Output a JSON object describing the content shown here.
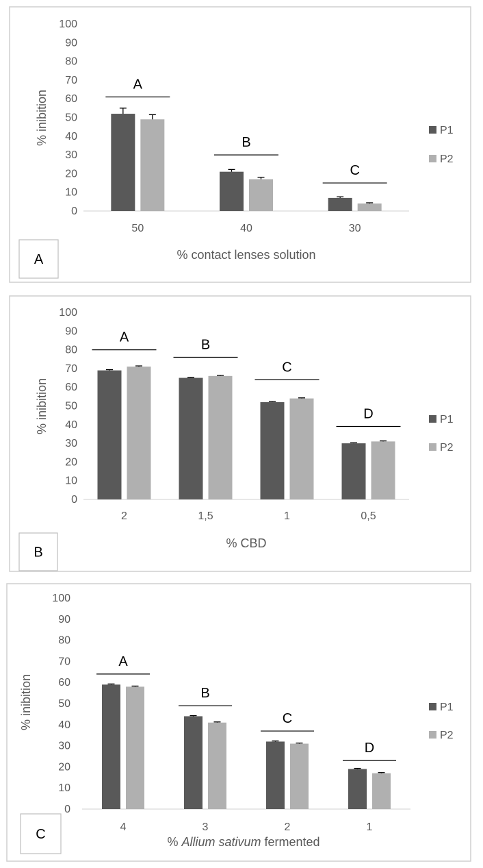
{
  "colors": {
    "P1": "#595959",
    "P2": "#b0b0b0"
  },
  "chart_data": [
    {
      "type": "bar",
      "panel_label": "A",
      "xlabel": "% contact lenses solution",
      "ylabel": "% inibition",
      "ylim": [
        0,
        100
      ],
      "yticks": [
        0,
        10,
        20,
        30,
        40,
        50,
        60,
        70,
        80,
        90,
        100
      ],
      "categories": [
        "50",
        "40",
        "30"
      ],
      "series": [
        {
          "name": "P1",
          "values": [
            52,
            21,
            7
          ],
          "errors": [
            3,
            1.2,
            0.6
          ]
        },
        {
          "name": "P2",
          "values": [
            49,
            17,
            4
          ],
          "errors": [
            2.5,
            1.0,
            0.4
          ]
        }
      ],
      "group_labels": [
        "A",
        "B",
        "C"
      ],
      "group_label_levels": [
        61,
        30,
        15
      ],
      "legend": "right",
      "grid": false
    },
    {
      "type": "bar",
      "panel_label": "B",
      "xlabel": "% CBD",
      "ylabel": "% inibition",
      "ylim": [
        0,
        100
      ],
      "yticks": [
        0,
        10,
        20,
        30,
        40,
        50,
        60,
        70,
        80,
        90,
        100
      ],
      "categories": [
        "2",
        "1,5",
        "1",
        "0,5"
      ],
      "series": [
        {
          "name": "P1",
          "values": [
            69,
            65,
            52,
            30
          ],
          "errors": [
            0.4,
            0.3,
            0.3,
            0.3
          ]
        },
        {
          "name": "P2",
          "values": [
            71,
            66,
            54,
            31
          ],
          "errors": [
            0.4,
            0.3,
            0.3,
            0.3
          ]
        }
      ],
      "group_labels": [
        "A",
        "B",
        "C",
        "D"
      ],
      "group_label_levels": [
        80,
        76,
        64,
        39
      ],
      "legend": "right",
      "grid": false
    },
    {
      "type": "bar",
      "panel_label": "C",
      "xlabel_parts": [
        "% ",
        "Allium sativum",
        " fermented"
      ],
      "ylabel": "% inibition",
      "ylim": [
        0,
        100
      ],
      "yticks": [
        0,
        10,
        20,
        30,
        40,
        50,
        60,
        70,
        80,
        90,
        100
      ],
      "categories": [
        "4",
        "3",
        "2",
        "1"
      ],
      "series": [
        {
          "name": "P1",
          "values": [
            59,
            44,
            32,
            19
          ],
          "errors": [
            0.3,
            0.3,
            0.3,
            0.3
          ]
        },
        {
          "name": "P2",
          "values": [
            58,
            41,
            31,
            17
          ],
          "errors": [
            0.3,
            0.3,
            0.3,
            0.3
          ]
        }
      ],
      "group_labels": [
        "A",
        "B",
        "C",
        "D"
      ],
      "group_label_levels": [
        64,
        49,
        37,
        23
      ],
      "legend": "right",
      "grid": false
    }
  ]
}
